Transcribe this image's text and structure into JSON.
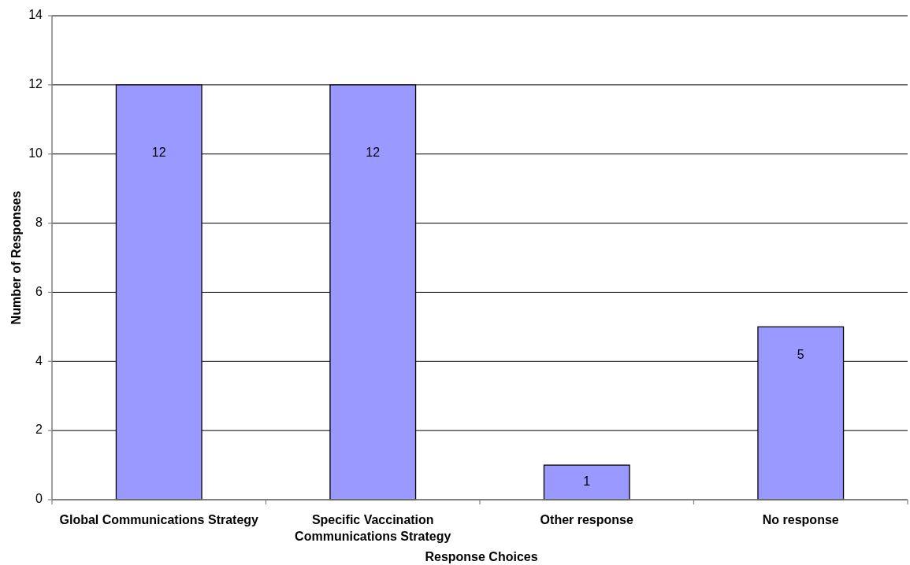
{
  "chart_data": {
    "type": "bar",
    "xlabel": "Response Choices",
    "ylabel": "Number of Responses",
    "categories": [
      "Global Communications Strategy",
      "Specific Vaccination Communications Strategy",
      "Other response",
      "No response"
    ],
    "values": [
      12,
      12,
      1,
      5
    ],
    "color": "#9999ff",
    "ylim": [
      0,
      14
    ],
    "yticks": [
      0,
      2,
      4,
      6,
      8,
      10,
      12,
      14
    ],
    "grid": "y",
    "data_labels": true
  }
}
